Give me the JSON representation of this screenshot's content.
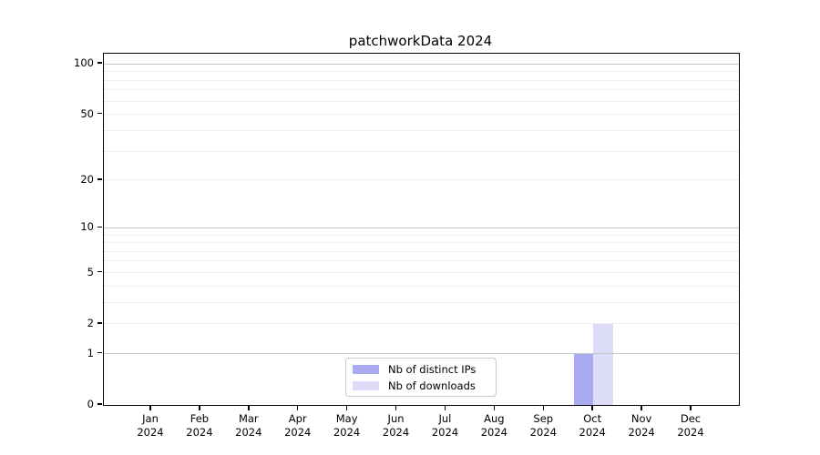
{
  "chart_data": {
    "type": "bar",
    "title": "patchworkData 2024",
    "categories": [
      "Jan 2024",
      "Feb 2024",
      "Mar 2024",
      "Apr 2024",
      "May 2024",
      "Jun 2024",
      "Jul 2024",
      "Aug 2024",
      "Sep 2024",
      "Oct 2024",
      "Nov 2024",
      "Dec 2024"
    ],
    "series": [
      {
        "name": "Nb of distinct IPs",
        "color": "#aaaaf2",
        "values": [
          0,
          0,
          0,
          0,
          0,
          0,
          0,
          0,
          0,
          1,
          0,
          0
        ]
      },
      {
        "name": "Nb of downloads",
        "color": "#dcdcf8",
        "values": [
          0,
          0,
          0,
          0,
          0,
          0,
          0,
          0,
          0,
          2,
          0,
          0
        ]
      }
    ],
    "xlabel": "",
    "ylabel": "",
    "yscale": "log1p",
    "yticks": [
      0,
      1,
      2,
      5,
      10,
      20,
      50,
      100
    ],
    "ylim": [
      0,
      115
    ],
    "grid": "horizontal",
    "legend_position": "bottom-center",
    "colors": {
      "major_gridline": "#c6c6c6",
      "minor_gridline": "#ededed",
      "axis": "#000000",
      "text": "#000000"
    }
  },
  "legend": {
    "items": [
      {
        "label": "Nb of distinct IPs",
        "color": "#aaaaf2"
      },
      {
        "label": "Nb of downloads",
        "color": "#dcdcf8"
      }
    ]
  }
}
